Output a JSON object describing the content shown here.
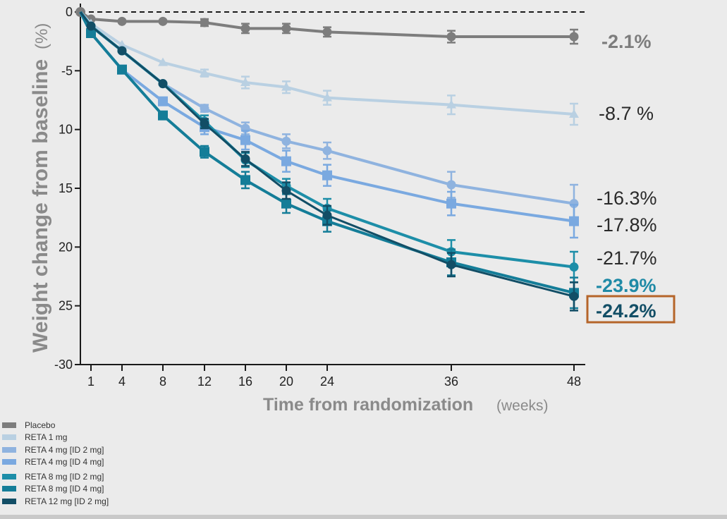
{
  "chart_data": {
    "type": "line",
    "title": "",
    "xlabel": "Time from randomization",
    "xlabel_unit": "(weeks)",
    "ylabel": "Weight change from baseline",
    "ylabel_unit": "(%)",
    "x_ticks": [
      1,
      4,
      8,
      12,
      16,
      20,
      24,
      36,
      48
    ],
    "x_range": [
      0,
      48
    ],
    "y_ticks": [
      {
        "value": 0,
        "label": "0"
      },
      {
        "value": -5,
        "label": "-5"
      },
      {
        "value": -10,
        "label": "10"
      },
      {
        "value": -15,
        "label": "15"
      },
      {
        "value": -20,
        "label": "20"
      },
      {
        "value": -25,
        "label": "25"
      },
      {
        "value": -30,
        "label": "-30"
      }
    ],
    "ylim": [
      -30,
      0
    ],
    "grid": false,
    "reference_line": {
      "y": 0,
      "style": "dashed"
    },
    "legend_position": "bottom-left",
    "x": [
      0,
      1,
      4,
      8,
      12,
      16,
      20,
      24,
      36,
      48
    ],
    "series": [
      {
        "name": "Placebo",
        "color": "#7d7d7d",
        "marker": "circle",
        "values": [
          0,
          -0.6,
          -0.8,
          -0.8,
          -0.9,
          -1.4,
          -1.4,
          -1.7,
          -2.1,
          -2.1
        ],
        "error": [
          0,
          0,
          0,
          0,
          0.3,
          0.4,
          0.4,
          0.4,
          0.5,
          0.6
        ],
        "end_label": "-2.1%",
        "end_label_color": "#7d7d7d",
        "end_label_bold": true
      },
      {
        "name": "RETA 1 mg",
        "color": "#b9d0e2",
        "marker": "triangle",
        "values": [
          0,
          -1.0,
          -2.8,
          -4.3,
          -5.2,
          -6.0,
          -6.4,
          -7.3,
          -7.9,
          -8.7
        ],
        "error": [
          0,
          0,
          0,
          0,
          0.3,
          0.5,
          0.5,
          0.6,
          0.8,
          0.9
        ],
        "end_label": "-8.7 %",
        "end_label_color": "#2a2a2a",
        "end_label_bold": false
      },
      {
        "name": "RETA 4 mg [ID 2 mg]",
        "color": "#8fb3df",
        "marker": "circle",
        "values": [
          0,
          -1.2,
          -3.3,
          -6.1,
          -8.2,
          -9.9,
          -11.0,
          -11.8,
          -14.7,
          -16.3
        ],
        "error": [
          0,
          0,
          0,
          0,
          0.3,
          0.5,
          0.6,
          0.7,
          1.1,
          1.6
        ],
        "end_label": "-16.3%",
        "end_label_color": "#2a2a2a",
        "end_label_bold": false
      },
      {
        "name": "RETA 4 mg [ID 4 mg]",
        "color": "#7aa9e0",
        "marker": "square",
        "values": [
          0,
          -1.8,
          -4.9,
          -7.6,
          -9.8,
          -10.9,
          -12.7,
          -13.9,
          -16.3,
          -17.8
        ],
        "error": [
          0,
          0,
          0,
          0,
          0.6,
          0.8,
          0.9,
          0.9,
          1.0,
          1.4
        ],
        "end_label": "-17.8%",
        "end_label_color": "#2a2a2a",
        "end_label_bold": false
      },
      {
        "name": "RETA 8 mg [ID 2 mg]",
        "color": "#1d8ea8",
        "marker": "circle",
        "values": [
          0,
          -1.2,
          -3.3,
          -6.1,
          -9.3,
          -12.6,
          -14.8,
          -16.7,
          -20.4,
          -21.7
        ],
        "error": [
          0,
          0,
          0,
          0,
          0.5,
          0.6,
          0.6,
          0.8,
          1.0,
          1.3
        ],
        "end_label": "-21.7%",
        "end_label_color": "#2a2a2a",
        "end_label_bold": false
      },
      {
        "name": "RETA 8 mg [ID 4 mg]",
        "color": "#147d98",
        "marker": "square",
        "values": [
          0,
          -1.8,
          -4.9,
          -8.8,
          -11.9,
          -14.3,
          -16.3,
          -17.8,
          -21.3,
          -23.9
        ],
        "error": [
          0,
          0,
          0,
          0,
          0.5,
          0.7,
          0.8,
          0.9,
          1.1,
          1.3
        ],
        "end_label": "-23.9%",
        "end_label_color": "#1f8aa6",
        "end_label_bold": true
      },
      {
        "name": "RETA 12 mg [ID 2 mg]",
        "color": "#124e66",
        "marker": "circle",
        "values": [
          0,
          -1.2,
          -3.3,
          -6.1,
          -9.5,
          -12.5,
          -15.2,
          -17.3,
          -21.5,
          -24.2
        ],
        "error": [
          0,
          0,
          0,
          0,
          0.4,
          0.6,
          0.7,
          0.8,
          1.0,
          1.2
        ],
        "end_label": "-24.2%",
        "end_label_color": "#124e66",
        "end_label_bold": true,
        "highlighted": true
      }
    ]
  }
}
